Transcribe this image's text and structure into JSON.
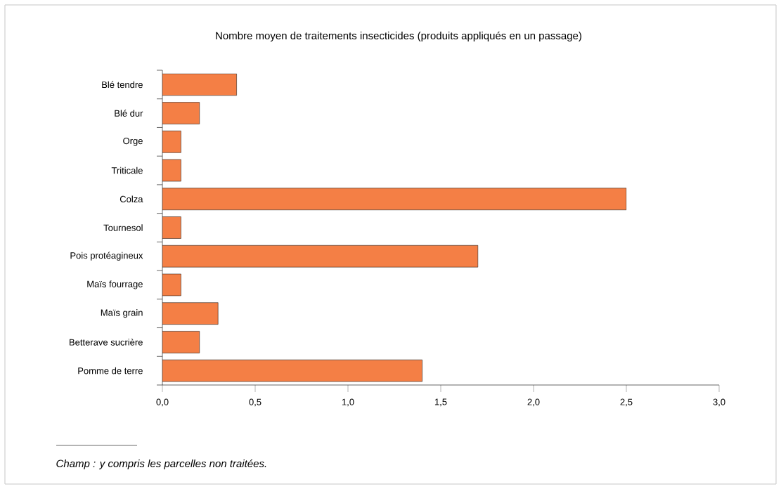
{
  "chart_data": {
    "type": "bar",
    "orientation": "horizontal",
    "title": "Nombre moyen de traitements insecticides (produits appliqués en un passage)",
    "categories": [
      "Blé tendre",
      "Blé dur",
      "Orge",
      "Triticale",
      "Colza",
      "Tournesol",
      "Pois protéagineux",
      "Maïs fourrage",
      "Maïs grain",
      "Betterave sucrière",
      "Pomme de terre"
    ],
    "values": [
      0.4,
      0.2,
      0.1,
      0.1,
      2.5,
      0.1,
      1.7,
      0.1,
      0.3,
      0.2,
      1.4
    ],
    "color": "#f47f45",
    "xlim": [
      0,
      3
    ],
    "xticks": [
      {
        "value": 0,
        "label": "0,0"
      },
      {
        "value": 0.5,
        "label": "0,5"
      },
      {
        "value": 1,
        "label": "1,0"
      },
      {
        "value": 1.5,
        "label": "1,5"
      },
      {
        "value": 2,
        "label": "2,0"
      },
      {
        "value": 2.5,
        "label": "2,5"
      },
      {
        "value": 3,
        "label": "3,0"
      }
    ],
    "grid": false,
    "annotations": [
      "*Champ : y compris les parcelles non traitées.*"
    ]
  }
}
